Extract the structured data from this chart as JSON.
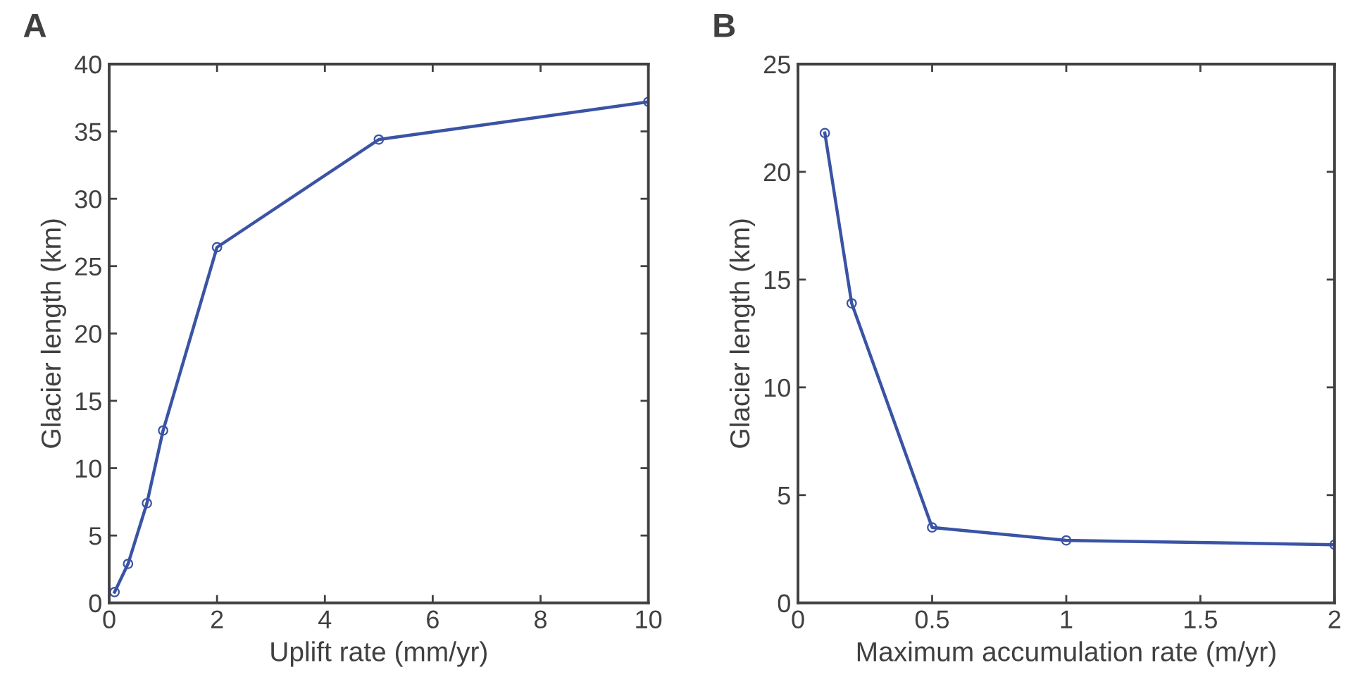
{
  "chart_data": [
    {
      "type": "line",
      "xlabel": "Uplift rate (mm/yr)",
      "ylabel": "Glacier length (km)",
      "annotations": [
        "A"
      ],
      "marker": "circle",
      "line_style": "solid",
      "grid": false,
      "legend": false,
      "x": [
        0.1,
        0.35,
        0.7,
        1,
        2,
        5,
        10
      ],
      "series": [
        {
          "color": "#3a53a4",
          "values": [
            0.8,
            2.9,
            7.4,
            12.8,
            26.4,
            34.4,
            37.2
          ]
        }
      ],
      "xlim": [
        0,
        10
      ],
      "xticks": [
        0,
        2,
        4,
        6,
        8,
        10
      ],
      "ylim": [
        0,
        40
      ],
      "yticks": [
        0,
        5,
        10,
        15,
        20,
        25,
        30,
        35,
        40
      ]
    },
    {
      "type": "line",
      "xlabel": "Maximum accumulation rate (m/yr)",
      "ylabel": "Glacier length (km)",
      "annotations": [
        "B"
      ],
      "marker": "circle",
      "line_style": "solid",
      "grid": false,
      "legend": false,
      "x": [
        0.1,
        0.2,
        0.5,
        1,
        2
      ],
      "series": [
        {
          "color": "#3a53a4",
          "values": [
            21.8,
            13.9,
            3.5,
            2.9,
            2.7
          ]
        }
      ],
      "xlim": [
        0,
        2
      ],
      "xticks": [
        0,
        0.5,
        1,
        1.5,
        2
      ],
      "ylim": [
        0,
        25
      ],
      "yticks": [
        0,
        5,
        10,
        15,
        20,
        25
      ]
    }
  ]
}
